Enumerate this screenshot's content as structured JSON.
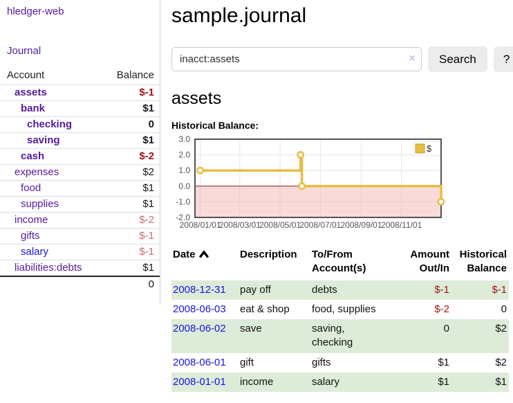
{
  "app": {
    "brand": "hledger-web",
    "nav": {
      "journal": "Journal"
    }
  },
  "sidebar": {
    "table_headers": {
      "account": "Account",
      "balance": "Balance"
    },
    "accounts": [
      {
        "name": "assets",
        "depth": 0,
        "balance": "$-1",
        "bold": true
      },
      {
        "name": "bank",
        "depth": 1,
        "balance": "$1",
        "bold": true
      },
      {
        "name": "checking",
        "depth": 2,
        "balance": "0",
        "bold": true
      },
      {
        "name": "saving",
        "depth": 2,
        "balance": "$1",
        "bold": true
      },
      {
        "name": "cash",
        "depth": 1,
        "balance": "$-2",
        "bold": true
      },
      {
        "name": "expenses",
        "depth": 0,
        "balance": "$2",
        "bold": false
      },
      {
        "name": "food",
        "depth": 1,
        "balance": "$1",
        "bold": false
      },
      {
        "name": "supplies",
        "depth": 1,
        "balance": "$1",
        "bold": false
      },
      {
        "name": "income",
        "depth": 0,
        "balance": "$-2",
        "bold": false
      },
      {
        "name": "gifts",
        "depth": 1,
        "balance": "$-1",
        "bold": false
      },
      {
        "name": "salary",
        "depth": 1,
        "balance": "$-1",
        "bold": false
      },
      {
        "name": "liabilities:debts",
        "depth": 0,
        "balance": "$1",
        "bold": false
      }
    ],
    "total": "0"
  },
  "header": {
    "title": "sample.journal"
  },
  "search": {
    "value": "inacct:assets",
    "clear_icon": "×",
    "button_label": "Search",
    "help_label": "?"
  },
  "account_page": {
    "title": "assets",
    "chart_label": "Historical Balance:"
  },
  "chart_data": {
    "type": "line",
    "title": "Historical Balance",
    "x_domain": [
      "2007-12-24",
      "2008-12-31"
    ],
    "x_ticks": [
      {
        "date": "2008-01-01",
        "label": "2008/01/01"
      },
      {
        "date": "2008-03-01",
        "label": "2008/03/01"
      },
      {
        "date": "2008-05-01",
        "label": "2008/05/01"
      },
      {
        "date": "2008-07-01",
        "label": "2008/07/01"
      },
      {
        "date": "2008-09-01",
        "label": "2008/09/01"
      },
      {
        "date": "2008-11-01",
        "label": "2008/11/01"
      }
    ],
    "ylim": [
      -2,
      3
    ],
    "y_ticks": [
      3,
      2,
      1,
      0,
      -1,
      -2
    ],
    "series": [
      {
        "name": "$",
        "color": "#e6be42",
        "marker_fill": "#ffffff",
        "step": true,
        "points": [
          [
            "2008-01-01",
            1
          ],
          [
            "2008-06-01",
            2
          ],
          [
            "2008-06-03",
            0
          ],
          [
            "2008-12-31",
            -1
          ]
        ]
      }
    ],
    "grid": true,
    "grid_color": "#e6e6e6",
    "border_color": "#545454",
    "zero_line_color": "#8f1d1d",
    "negative_region_fill": "rgba(244,170,170,0.45)",
    "legend": {
      "position": "top-right",
      "label": "$"
    }
  },
  "register": {
    "headers": {
      "date": "Date",
      "description": "Description",
      "tofrom": "To/From Account(s)",
      "amount": "Amount Out/In",
      "balance": "Historical Balance"
    },
    "rows": [
      {
        "date": "2008-12-31",
        "description": "pay off",
        "tofrom": "debts",
        "amount": "$-1",
        "balance": "$-1"
      },
      {
        "date": "2008-06-03",
        "description": "eat & shop",
        "tofrom": "food, supplies",
        "amount": "$-2",
        "balance": "0"
      },
      {
        "date": "2008-06-02",
        "description": "save",
        "tofrom": "saving,\nchecking",
        "amount": "0",
        "balance": "$2"
      },
      {
        "date": "2008-06-01",
        "description": "gift",
        "tofrom": "gifts",
        "amount": "$1",
        "balance": "$2"
      },
      {
        "date": "2008-01-01",
        "description": "income",
        "tofrom": "salary",
        "amount": "$1",
        "balance": "$1"
      }
    ]
  }
}
